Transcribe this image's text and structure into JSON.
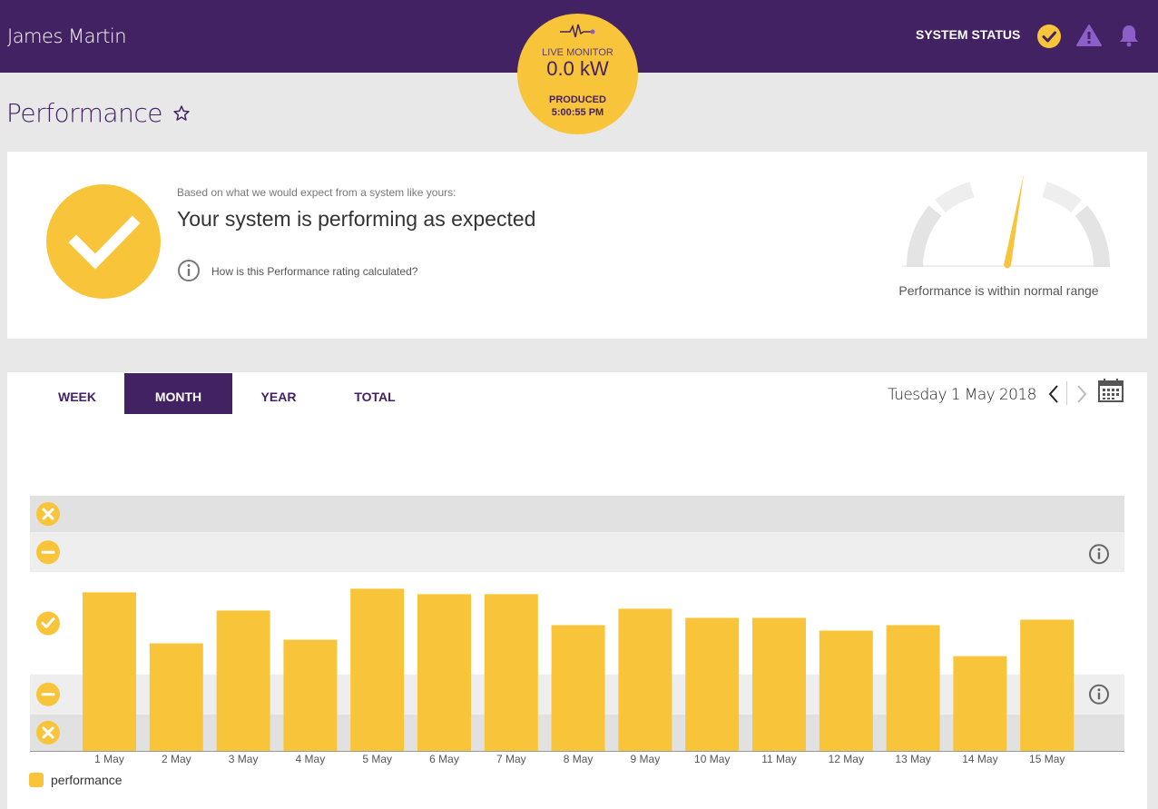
{
  "header": {
    "user_name": "James Martin",
    "system_status_label": "SYSTEM STATUS",
    "status_icons": [
      "check-circle-icon",
      "warning-icon",
      "bell-icon"
    ]
  },
  "live_monitor": {
    "label": "LIVE MONITOR",
    "value": "0.0 kW",
    "produced_label": "PRODUCED",
    "produced_time": "5:00:55 PM"
  },
  "page": {
    "title": "Performance"
  },
  "summary": {
    "subtitle": "Based on what we would expect from a system like yours:",
    "headline": "Your system is performing as expected",
    "link_text": "How is this Performance rating calculated?",
    "gauge_label": "Performance is within normal range"
  },
  "tabs": [
    {
      "label": "WEEK",
      "active": false
    },
    {
      "label": "MONTH",
      "active": true
    },
    {
      "label": "YEAR",
      "active": false
    },
    {
      "label": "TOTAL",
      "active": false
    }
  ],
  "date_nav": {
    "date": "Tuesday 1 May 2018"
  },
  "colors": {
    "accent": "#f8c53a",
    "brand": "#432263"
  },
  "chart_data": {
    "type": "bar",
    "categories": [
      "1 May",
      "2 May",
      "3 May",
      "4 May",
      "5 May",
      "6 May",
      "7 May",
      "8 May",
      "9 May",
      "10 May",
      "11 May",
      "12 May",
      "13 May",
      "14 May",
      "15 May"
    ],
    "values": [
      87,
      59,
      77,
      61,
      89,
      86,
      86,
      69,
      78,
      73,
      73,
      66,
      69,
      52,
      72
    ],
    "ylim": [
      0,
      140
    ],
    "bands": [
      {
        "from": 120,
        "to": 140,
        "rating": "poor"
      },
      {
        "from": 98,
        "to": 120,
        "rating": "below-normal"
      },
      {
        "from": 42,
        "to": 98,
        "rating": "normal"
      },
      {
        "from": 20,
        "to": 42,
        "rating": "below-normal"
      },
      {
        "from": 0,
        "to": 20,
        "rating": "poor"
      }
    ],
    "legend": [
      "performance"
    ]
  }
}
